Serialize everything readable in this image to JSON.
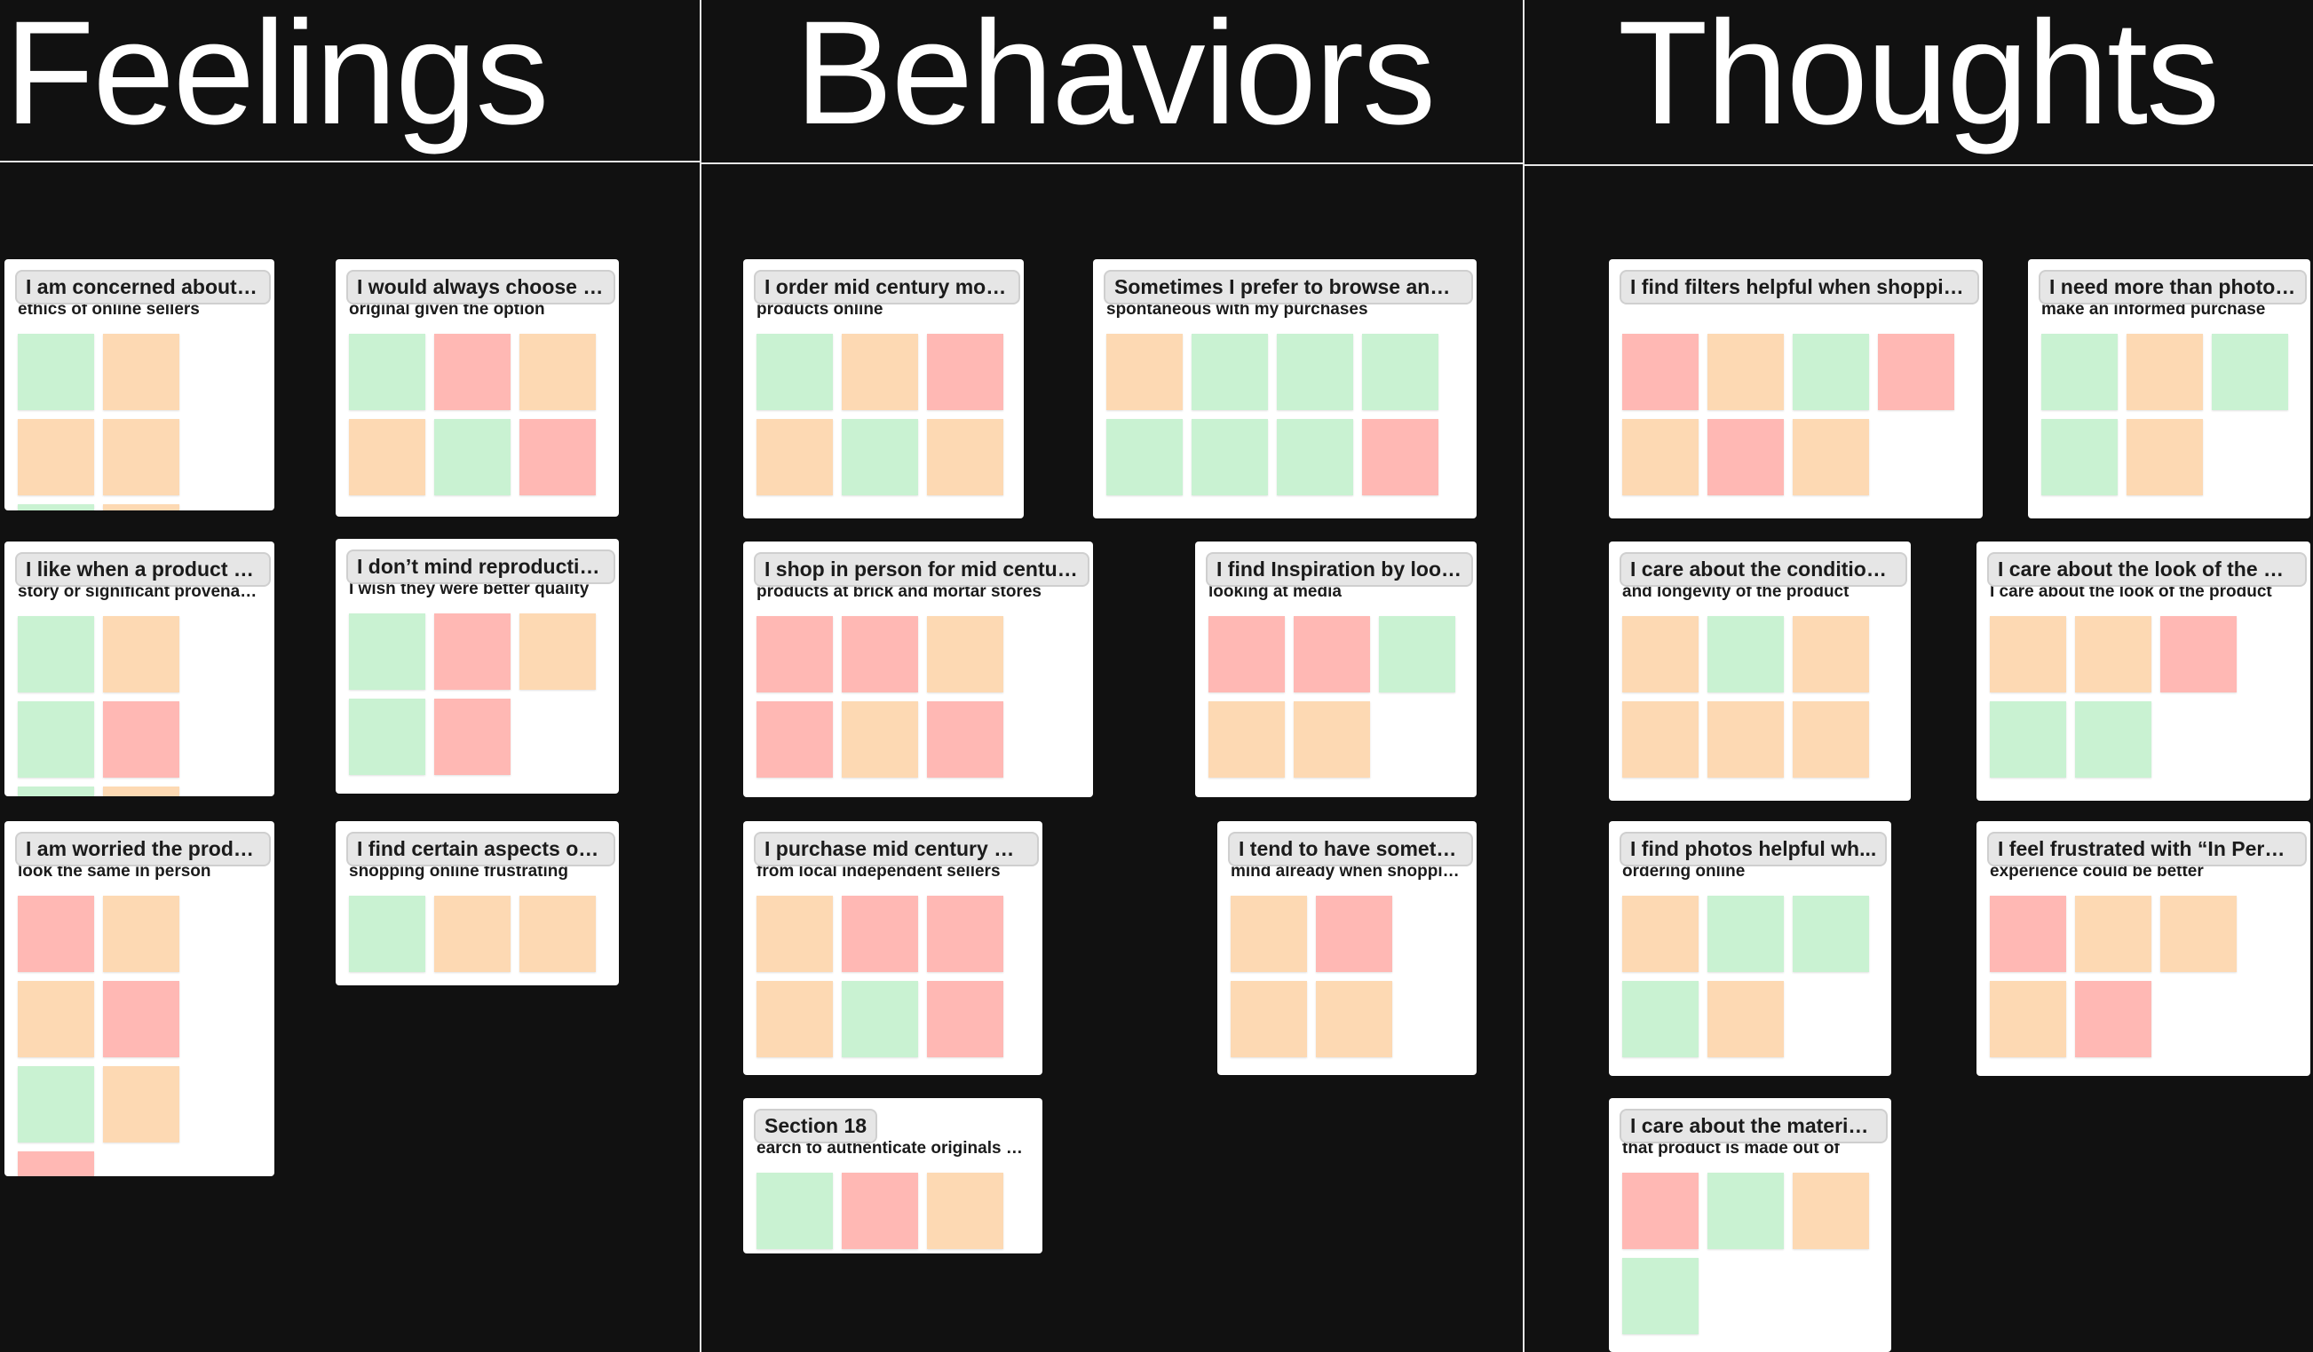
{
  "columns": [
    {
      "title": "Feelings"
    },
    {
      "title": "Behaviors"
    },
    {
      "title": "Thoughts"
    }
  ],
  "colors": {
    "green": "#c9f2d2",
    "orange": "#fdd9b3",
    "red": "#ffb8b4",
    "background": "#111111"
  },
  "sections": [
    {
      "title": "I am concerned about t...",
      "subtitle": "ethics of online sellers",
      "notes": [
        "green",
        "orange",
        "orange",
        "orange",
        "green",
        "orange"
      ]
    },
    {
      "title": "I would always choose a...",
      "subtitle": "original given the option",
      "notes": [
        "green",
        "red",
        "orange",
        "orange",
        "green",
        "red"
      ]
    },
    {
      "title": "I like when a product h...",
      "subtitle": "story or significant provenance",
      "notes": [
        "green",
        "orange",
        "green",
        "red",
        "green",
        "orange"
      ]
    },
    {
      "title": "I don’t mind reproductio...",
      "subtitle": "I wish they were better quality",
      "notes": [
        "green",
        "red",
        "orange",
        "green",
        "red"
      ]
    },
    {
      "title": "I am worried the produ...",
      "subtitle": "look the same in person",
      "notes": [
        "red",
        "orange",
        "orange",
        "red",
        "green",
        "orange",
        "red"
      ]
    },
    {
      "title": "I find certain aspects of ...",
      "subtitle": "shopping online frustrating",
      "notes": [
        "green",
        "orange",
        "orange"
      ]
    },
    {
      "title": "I order mid century mod...",
      "subtitle": "products online",
      "notes": [
        "green",
        "orange",
        "red",
        "orange",
        "green",
        "orange"
      ]
    },
    {
      "title": "Sometimes I prefer to browse and ...",
      "subtitle": "spontaneous with my purchases",
      "notes": [
        "orange",
        "green",
        "green",
        "green",
        "green",
        "green",
        "green",
        "red"
      ]
    },
    {
      "title": "I shop in person for mid centur...",
      "subtitle": "products at brick and mortar stores",
      "notes": [
        "red",
        "red",
        "orange",
        "red",
        "orange",
        "red"
      ]
    },
    {
      "title": "I find Inspiration by looki...",
      "subtitle": "looking at media",
      "notes": [
        "red",
        "red",
        "green",
        "orange",
        "orange"
      ]
    },
    {
      "title": "I purchase mid century m...",
      "subtitle": "from local independent sellers",
      "notes": [
        "orange",
        "red",
        "red",
        "orange",
        "green",
        "red"
      ]
    },
    {
      "title": "I tend to have someth...",
      "subtitle": "mind already when shopping.",
      "notes": [
        "orange",
        "red",
        "orange",
        "orange"
      ]
    },
    {
      "title": "Section 18",
      "subtitle": "earch to authenticate originals before purchasing",
      "notes": [
        "green",
        "red",
        "orange"
      ]
    },
    {
      "title": "I find filters helpful when shoppin...",
      "subtitle": "",
      "notes": [
        "red",
        "orange",
        "green",
        "red",
        "orange",
        "red",
        "orange"
      ]
    },
    {
      "title": "I need more than photos...",
      "subtitle": "make an informed purchase",
      "notes": [
        "green",
        "orange",
        "green",
        "green",
        "orange"
      ]
    },
    {
      "title": "I care about the condition ...",
      "subtitle": "and longevity of the product",
      "notes": [
        "orange",
        "green",
        "orange",
        "orange",
        "orange",
        "orange"
      ]
    },
    {
      "title": "I care about the look of the pr...",
      "subtitle": "I care about the look of the product",
      "notes": [
        "orange",
        "orange",
        "red",
        "green",
        "green"
      ]
    },
    {
      "title": "I find photos helpful wh...",
      "subtitle": "ordering online",
      "notes": [
        "orange",
        "green",
        "green",
        "green",
        "orange"
      ]
    },
    {
      "title": "I feel frustrated with “In Perso...",
      "subtitle": "experience could be better",
      "notes": [
        "red",
        "orange",
        "orange",
        "orange",
        "red"
      ]
    },
    {
      "title": "I care about the material...",
      "subtitle": "that product is made out of",
      "notes": [
        "red",
        "green",
        "orange",
        "green"
      ]
    }
  ]
}
